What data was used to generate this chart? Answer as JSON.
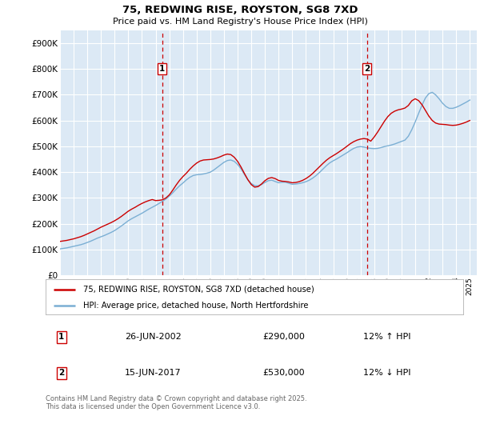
{
  "title": "75, REDWING RISE, ROYSTON, SG8 7XD",
  "subtitle": "Price paid vs. HM Land Registry's House Price Index (HPI)",
  "ylim": [
    0,
    950000
  ],
  "yticks": [
    0,
    100000,
    200000,
    300000,
    400000,
    500000,
    600000,
    700000,
    800000,
    900000
  ],
  "ytick_labels": [
    "£0",
    "£100K",
    "£200K",
    "£300K",
    "£400K",
    "£500K",
    "£600K",
    "£700K",
    "£800K",
    "£900K"
  ],
  "xlim_start": 1995.0,
  "xlim_end": 2025.5,
  "bg_color": "#dce9f5",
  "grid_color": "#ffffff",
  "red_color": "#cc0000",
  "blue_color": "#7bafd4",
  "marker1_x": 2002.48,
  "marker2_x": 2017.46,
  "marker1_label": "1",
  "marker2_label": "2",
  "legend_line1": "75, REDWING RISE, ROYSTON, SG8 7XD (detached house)",
  "legend_line2": "HPI: Average price, detached house, North Hertfordshire",
  "ann1_num": "1",
  "ann1_date": "26-JUN-2002",
  "ann1_price": "£290,000",
  "ann1_pct": "12% ↑ HPI",
  "ann2_num": "2",
  "ann2_date": "15-JUN-2017",
  "ann2_price": "£530,000",
  "ann2_pct": "12% ↓ HPI",
  "footer": "Contains HM Land Registry data © Crown copyright and database right 2025.\nThis data is licensed under the Open Government Licence v3.0.",
  "hpi_years": [
    1995.0,
    1995.25,
    1995.5,
    1995.75,
    1996.0,
    1996.25,
    1996.5,
    1996.75,
    1997.0,
    1997.25,
    1997.5,
    1997.75,
    1998.0,
    1998.25,
    1998.5,
    1998.75,
    1999.0,
    1999.25,
    1999.5,
    1999.75,
    2000.0,
    2000.25,
    2000.5,
    2000.75,
    2001.0,
    2001.25,
    2001.5,
    2001.75,
    2002.0,
    2002.25,
    2002.5,
    2002.75,
    2003.0,
    2003.25,
    2003.5,
    2003.75,
    2004.0,
    2004.25,
    2004.5,
    2004.75,
    2005.0,
    2005.25,
    2005.5,
    2005.75,
    2006.0,
    2006.25,
    2006.5,
    2006.75,
    2007.0,
    2007.25,
    2007.5,
    2007.75,
    2008.0,
    2008.25,
    2008.5,
    2008.75,
    2009.0,
    2009.25,
    2009.5,
    2009.75,
    2010.0,
    2010.25,
    2010.5,
    2010.75,
    2011.0,
    2011.25,
    2011.5,
    2011.75,
    2012.0,
    2012.25,
    2012.5,
    2012.75,
    2013.0,
    2013.25,
    2013.5,
    2013.75,
    2014.0,
    2014.25,
    2014.5,
    2014.75,
    2015.0,
    2015.25,
    2015.5,
    2015.75,
    2016.0,
    2016.25,
    2016.5,
    2016.75,
    2017.0,
    2017.25,
    2017.5,
    2017.75,
    2018.0,
    2018.25,
    2018.5,
    2018.75,
    2019.0,
    2019.25,
    2019.5,
    2019.75,
    2020.0,
    2020.25,
    2020.5,
    2020.75,
    2021.0,
    2021.25,
    2021.5,
    2021.75,
    2022.0,
    2022.25,
    2022.5,
    2022.75,
    2023.0,
    2023.25,
    2023.5,
    2023.75,
    2024.0,
    2024.25,
    2024.5,
    2024.75,
    2025.0
  ],
  "hpi_vals": [
    103000,
    105000,
    107000,
    110000,
    113000,
    116000,
    119000,
    123000,
    128000,
    133000,
    139000,
    145000,
    150000,
    155000,
    161000,
    167000,
    174000,
    183000,
    192000,
    202000,
    212000,
    220000,
    227000,
    234000,
    241000,
    249000,
    257000,
    264000,
    271000,
    279000,
    287000,
    296000,
    307000,
    320000,
    334000,
    347000,
    358000,
    370000,
    380000,
    387000,
    390000,
    391000,
    393000,
    396000,
    400000,
    408000,
    418000,
    428000,
    438000,
    445000,
    447000,
    442000,
    430000,
    413000,
    391000,
    371000,
    356000,
    348000,
    347000,
    352000,
    360000,
    367000,
    369000,
    364000,
    359000,
    361000,
    361000,
    357000,
    353000,
    354000,
    356000,
    359000,
    363000,
    369000,
    377000,
    387000,
    399000,
    412000,
    425000,
    436000,
    444000,
    451000,
    459000,
    467000,
    475000,
    484000,
    492000,
    497000,
    499000,
    497000,
    494000,
    492000,
    491000,
    492000,
    495000,
    499000,
    502000,
    505000,
    509000,
    514000,
    519000,
    524000,
    539000,
    564000,
    594000,
    627000,
    659000,
    687000,
    704000,
    709000,
    699000,
    684000,
    667000,
    654000,
    647000,
    647000,
    651000,
    657000,
    664000,
    671000,
    679000
  ],
  "price_points": [
    [
      1995.0,
      132000
    ],
    [
      1995.25,
      134000
    ],
    [
      1995.5,
      136000
    ],
    [
      1995.75,
      139000
    ],
    [
      1996.0,
      142000
    ],
    [
      1996.25,
      146000
    ],
    [
      1996.5,
      150000
    ],
    [
      1996.75,
      155000
    ],
    [
      1997.0,
      161000
    ],
    [
      1997.25,
      167000
    ],
    [
      1997.5,
      173000
    ],
    [
      1997.75,
      180000
    ],
    [
      1998.0,
      187000
    ],
    [
      1998.25,
      193000
    ],
    [
      1998.5,
      199000
    ],
    [
      1998.75,
      205000
    ],
    [
      1999.0,
      212000
    ],
    [
      1999.25,
      220000
    ],
    [
      1999.5,
      229000
    ],
    [
      1999.75,
      239000
    ],
    [
      2000.0,
      249000
    ],
    [
      2000.25,
      257000
    ],
    [
      2000.5,
      264000
    ],
    [
      2000.75,
      272000
    ],
    [
      2001.0,
      279000
    ],
    [
      2001.25,
      285000
    ],
    [
      2001.5,
      290000
    ],
    [
      2001.75,
      294000
    ],
    [
      2002.0,
      290000
    ],
    [
      2002.25,
      291000
    ],
    [
      2002.5,
      293000
    ],
    [
      2002.75,
      300000
    ],
    [
      2003.0,
      312000
    ],
    [
      2003.25,
      330000
    ],
    [
      2003.5,
      350000
    ],
    [
      2003.75,
      368000
    ],
    [
      2004.0,
      383000
    ],
    [
      2004.25,
      396000
    ],
    [
      2004.5,
      411000
    ],
    [
      2004.75,
      424000
    ],
    [
      2005.0,
      435000
    ],
    [
      2005.25,
      443000
    ],
    [
      2005.5,
      447000
    ],
    [
      2005.75,
      448000
    ],
    [
      2006.0,
      449000
    ],
    [
      2006.25,
      451000
    ],
    [
      2006.5,
      455000
    ],
    [
      2006.75,
      460000
    ],
    [
      2007.0,
      466000
    ],
    [
      2007.25,
      470000
    ],
    [
      2007.5,
      468000
    ],
    [
      2007.75,
      458000
    ],
    [
      2008.0,
      442000
    ],
    [
      2008.25,
      420000
    ],
    [
      2008.5,
      395000
    ],
    [
      2008.75,
      371000
    ],
    [
      2009.0,
      352000
    ],
    [
      2009.25,
      342000
    ],
    [
      2009.5,
      344000
    ],
    [
      2009.75,
      354000
    ],
    [
      2010.0,
      367000
    ],
    [
      2010.25,
      376000
    ],
    [
      2010.5,
      379000
    ],
    [
      2010.75,
      375000
    ],
    [
      2011.0,
      368000
    ],
    [
      2011.25,
      365000
    ],
    [
      2011.5,
      364000
    ],
    [
      2011.75,
      362000
    ],
    [
      2012.0,
      359000
    ],
    [
      2012.25,
      360000
    ],
    [
      2012.5,
      363000
    ],
    [
      2012.75,
      368000
    ],
    [
      2013.0,
      375000
    ],
    [
      2013.25,
      384000
    ],
    [
      2013.5,
      395000
    ],
    [
      2013.75,
      408000
    ],
    [
      2014.0,
      421000
    ],
    [
      2014.25,
      434000
    ],
    [
      2014.5,
      446000
    ],
    [
      2014.75,
      456000
    ],
    [
      2015.0,
      464000
    ],
    [
      2015.25,
      472000
    ],
    [
      2015.5,
      481000
    ],
    [
      2015.75,
      490000
    ],
    [
      2016.0,
      500000
    ],
    [
      2016.25,
      510000
    ],
    [
      2016.5,
      518000
    ],
    [
      2016.75,
      524000
    ],
    [
      2017.0,
      528000
    ],
    [
      2017.25,
      530000
    ],
    [
      2017.5,
      528000
    ],
    [
      2017.75,
      520000
    ],
    [
      2018.0,
      536000
    ],
    [
      2018.25,
      555000
    ],
    [
      2018.5,
      576000
    ],
    [
      2018.75,
      597000
    ],
    [
      2019.0,
      615000
    ],
    [
      2019.25,
      628000
    ],
    [
      2019.5,
      636000
    ],
    [
      2019.75,
      641000
    ],
    [
      2020.0,
      644000
    ],
    [
      2020.25,
      648000
    ],
    [
      2020.5,
      658000
    ],
    [
      2020.75,
      676000
    ],
    [
      2021.0,
      684000
    ],
    [
      2021.25,
      677000
    ],
    [
      2021.5,
      661000
    ],
    [
      2021.75,
      639000
    ],
    [
      2022.0,
      617000
    ],
    [
      2022.25,
      600000
    ],
    [
      2022.5,
      590000
    ],
    [
      2022.75,
      586000
    ],
    [
      2023.0,
      585000
    ],
    [
      2023.25,
      584000
    ],
    [
      2023.5,
      582000
    ],
    [
      2023.75,
      581000
    ],
    [
      2024.0,
      582000
    ],
    [
      2024.25,
      585000
    ],
    [
      2024.5,
      589000
    ],
    [
      2024.75,
      594000
    ],
    [
      2025.0,
      600000
    ]
  ]
}
